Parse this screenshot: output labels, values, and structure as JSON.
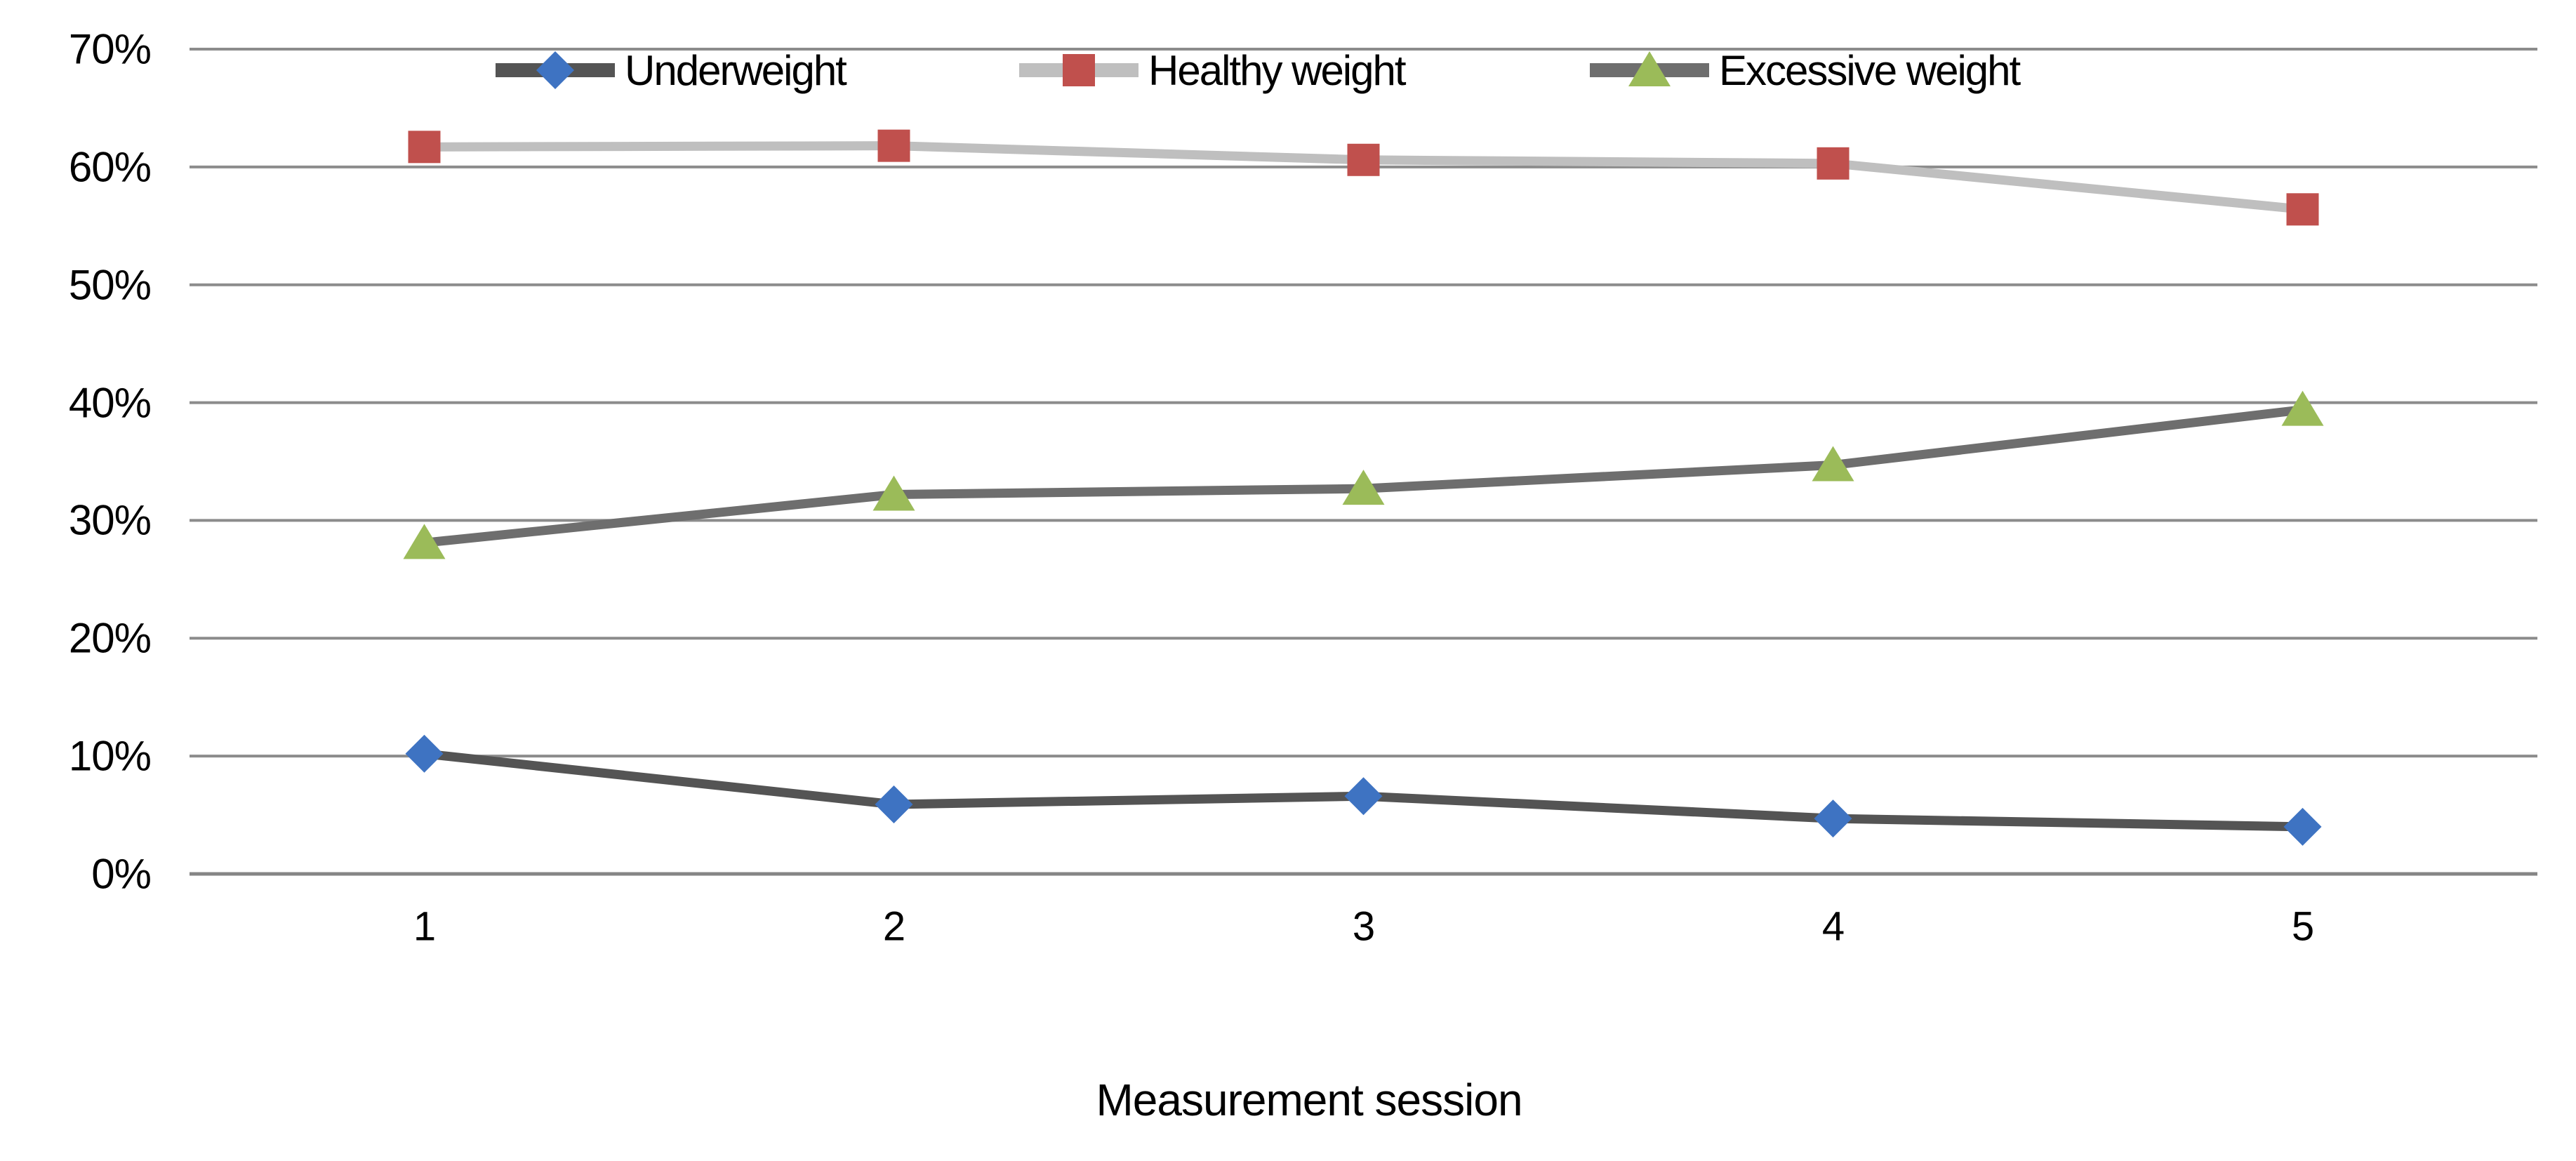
{
  "figure": {
    "background": "#ffffff",
    "text_color": "#000000"
  },
  "chart_data": {
    "type": "line",
    "title": "",
    "xlabel": "Measurement session",
    "ylabel": "",
    "categories": [
      "1",
      "2",
      "3",
      "4",
      "5"
    ],
    "ylim": [
      0,
      70
    ],
    "grid": true,
    "grid_color": "#8C8C8C",
    "axis_line_color": "#858585",
    "legend_position": "top",
    "yticks": [
      {
        "label": "70%",
        "value": 70
      },
      {
        "label": "60%",
        "value": 60
      },
      {
        "label": "50%",
        "value": 50
      },
      {
        "label": "40%",
        "value": 40
      },
      {
        "label": "30%",
        "value": 30
      },
      {
        "label": "20%",
        "value": 20
      },
      {
        "label": "10%",
        "value": 10
      },
      {
        "label": "0%",
        "value": 0
      }
    ],
    "series": [
      {
        "name": "Underweight",
        "marker": "diamond",
        "marker_color": "#3E73C2",
        "line_color": "#545454",
        "values": [
          10.2,
          5.9,
          6.6,
          4.7,
          4.0
        ]
      },
      {
        "name": "Healthy weight",
        "marker": "square",
        "marker_color": "#C0504D",
        "line_color": "#BFBFBF",
        "values": [
          61.7,
          61.8,
          60.6,
          60.3,
          56.4
        ]
      },
      {
        "name": "Excessive weight",
        "marker": "triangle",
        "marker_color": "#9BBB59",
        "line_color": "#6E6E6E",
        "values": [
          28.1,
          32.2,
          32.7,
          34.7,
          39.4
        ]
      }
    ]
  }
}
